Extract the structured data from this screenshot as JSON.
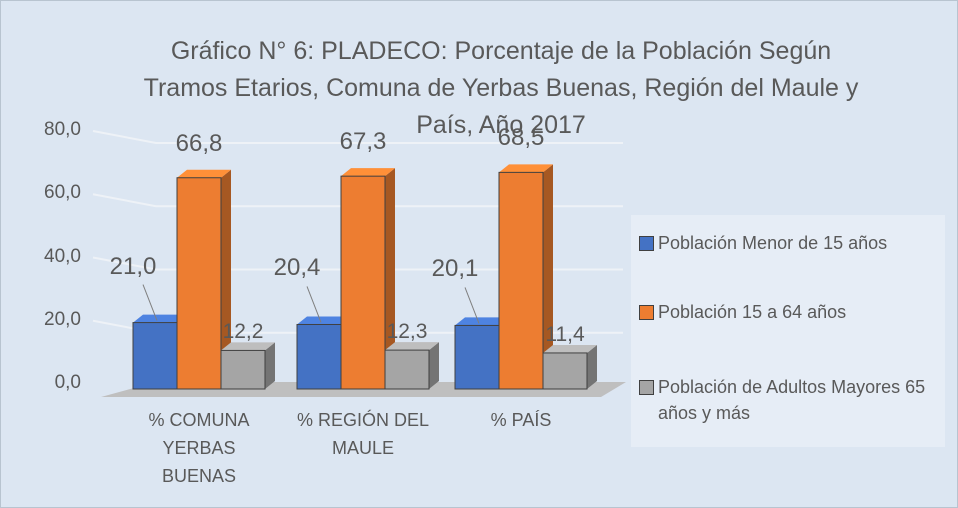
{
  "chart_data": {
    "type": "bar3d",
    "title": "Gráfico N° 6: PLADECO: Porcentaje de la Población Según Tramos Etarios, Comuna de Yerbas Buenas, Región del Maule y País, Año 2017",
    "categories": [
      "% COMUNA YERBAS BUENAS",
      "% REGIÓN DEL MAULE",
      "% PAÍS"
    ],
    "series": [
      {
        "name": "Población Menor de 15 años",
        "color": "#4472c4",
        "values": [
          21.0,
          20.4,
          20.1
        ],
        "value_labels": [
          "21,0",
          "20,4",
          "20,1"
        ]
      },
      {
        "name": "Población 15 a 64 años",
        "color": "#ed7d31",
        "values": [
          66.8,
          67.3,
          68.5
        ],
        "value_labels": [
          "66,8",
          "67,3",
          "68,5"
        ]
      },
      {
        "name": "Población de Adultos Mayores 65 años y más",
        "color": "#a5a5a5",
        "values": [
          12.2,
          12.3,
          11.4
        ],
        "value_labels": [
          "12,2",
          "12,3",
          "11,4"
        ]
      }
    ],
    "ylim": [
      0,
      80
    ],
    "yticks": [
      {
        "value": 0,
        "label": "0,0"
      },
      {
        "value": 20,
        "label": "20,0"
      },
      {
        "value": 40,
        "label": "40,0"
      },
      {
        "value": 60,
        "label": "60,0"
      },
      {
        "value": 80,
        "label": "80,0"
      }
    ],
    "grid": true,
    "legend": "right"
  }
}
